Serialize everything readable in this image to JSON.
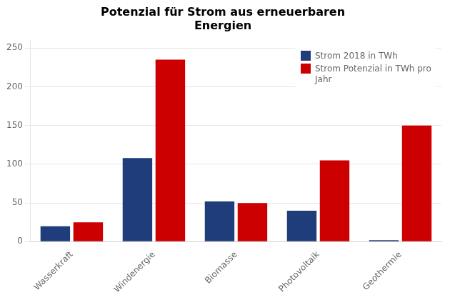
{
  "chart_data": {
    "type": "bar",
    "title": "Potenzial für Strom aus erneuerbaren\nEnergien",
    "categories": [
      "Wasserkraft",
      "Windenergie",
      "Biomasse",
      "Photovoltaik",
      "Geothermie"
    ],
    "series": [
      {
        "name": "Strom 2018 in TWh",
        "color": "#1F3D7A",
        "values": [
          20,
          108,
          52,
          40,
          2
        ]
      },
      {
        "name": "Strom Potenzial in TWh pro\nJahr",
        "color": "#CC0000",
        "values": [
          25,
          235,
          50,
          105,
          150
        ]
      }
    ],
    "ylim": [
      0,
      260
    ],
    "yticks": [
      0,
      50,
      100,
      150,
      200,
      250
    ],
    "grid": true,
    "legend": "upper right"
  }
}
